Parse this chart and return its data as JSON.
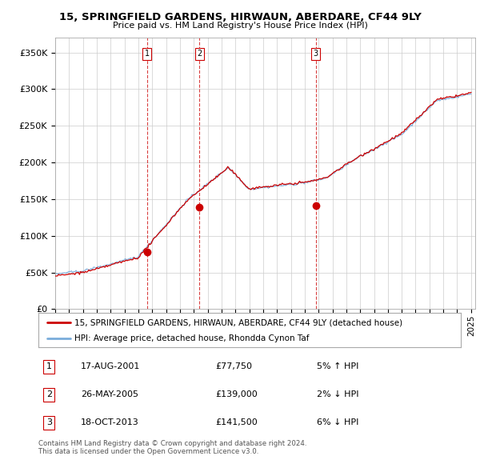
{
  "title": "15, SPRINGFIELD GARDENS, HIRWAUN, ABERDARE, CF44 9LY",
  "subtitle": "Price paid vs. HM Land Registry's House Price Index (HPI)",
  "ylim": [
    0,
    370000
  ],
  "yticks": [
    0,
    50000,
    100000,
    150000,
    200000,
    250000,
    300000,
    350000
  ],
  "ytick_labels": [
    "£0",
    "£50K",
    "£100K",
    "£150K",
    "£200K",
    "£250K",
    "£300K",
    "£350K"
  ],
  "sales": [
    {
      "date_num": 2001.63,
      "price": 77750,
      "label": "1"
    },
    {
      "date_num": 2005.4,
      "price": 139000,
      "label": "2"
    },
    {
      "date_num": 2013.8,
      "price": 141500,
      "label": "3"
    }
  ],
  "vlines": [
    2001.63,
    2005.4,
    2013.8
  ],
  "legend_entries": [
    "15, SPRINGFIELD GARDENS, HIRWAUN, ABERDARE, CF44 9LY (detached house)",
    "HPI: Average price, detached house, Rhondda Cynon Taf"
  ],
  "table_rows": [
    {
      "num": "1",
      "date": "17-AUG-2001",
      "price": "£77,750",
      "hpi": "5% ↑ HPI"
    },
    {
      "num": "2",
      "date": "26-MAY-2005",
      "price": "£139,000",
      "hpi": "2% ↓ HPI"
    },
    {
      "num": "3",
      "date": "18-OCT-2013",
      "price": "£141,500",
      "hpi": "6% ↓ HPI"
    }
  ],
  "footnote": "Contains HM Land Registry data © Crown copyright and database right 2024.\nThis data is licensed under the Open Government Licence v3.0.",
  "line_color_red": "#cc0000",
  "line_color_blue": "#7aaddb",
  "vline_color": "#cc0000",
  "background_color": "#ffffff",
  "grid_color": "#cccccc",
  "xmin": 1995,
  "xmax": 2025.3
}
